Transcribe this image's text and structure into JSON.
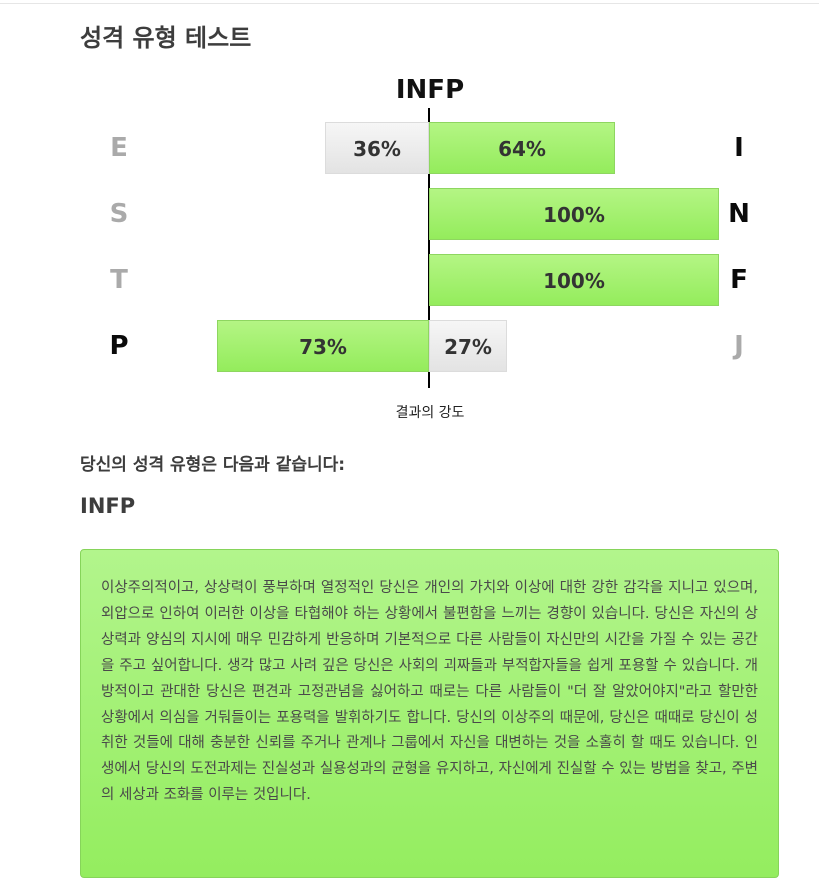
{
  "page": {
    "title": "성격 유형 테스트",
    "result_intro": "당신의 성격 유형은 다음과 같습니다:",
    "result_type": "INFP",
    "description": "이상주의적이고, 상상력이 풍부하며 열정적인 당신은 개인의 가치와 이상에 대한 강한 감각을 지니고 있으며, 외압으로 인하여 이러한 이상을 타협해야 하는 상황에서 불편함을 느끼는 경향이 있습니다. 당신은 자신의 상상력과 양심의 지시에 매우 민감하게 반응하며 기본적으로 다른 사람들이 자신만의 시간을 가질 수 있는 공간을 주고 싶어합니다. 생각 많고 사려 깊은 당신은 사회의 괴짜들과 부적합자들을 쉽게 포용할 수 있습니다. 개방적이고 관대한 당신은 편견과 고정관념을 싫어하고 때로는 다른 사람들이 \"더 잘 알았어야지\"라고 할만한 상황에서 의심을 거둬들이는 포용력을 발휘하기도 합니다. 당신의 이상주의 때문에, 당신은 때때로 당신이 성취한 것들에 대해 충분한 신뢰를 주거나 관계나 그룹에서 자신을 대변하는 것을 소홀히 할 때도 있습니다. 인생에서 당신의 도전과제는 진실성과 실용성과의 균형을 유지하고, 자신에게 진실할 수 있는 방법을 찾고, 주변의 세상과 조화를 이루는 것입니다."
  },
  "colors": {
    "winning_bar": "#9cef66",
    "losing_bar": "#ebebeb",
    "active_letter": "#0a0a0a",
    "inactive_letter": "#aaaaaa"
  },
  "chart_data": {
    "type": "bar",
    "orientation": "horizontal-diverging",
    "title": "INFP",
    "xlabel": "결과의 강도",
    "xlim": [
      0,
      100
    ],
    "rows": [
      {
        "left": "E",
        "right": "I",
        "left_value": 36,
        "right_value": 64,
        "left_label": "36%",
        "right_label": "64%",
        "dominant": "right"
      },
      {
        "left": "S",
        "right": "N",
        "left_value": 0,
        "right_value": 100,
        "left_label": "",
        "right_label": "100%",
        "dominant": "right"
      },
      {
        "left": "T",
        "right": "F",
        "left_value": 0,
        "right_value": 100,
        "left_label": "",
        "right_label": "100%",
        "dominant": "right"
      },
      {
        "left": "P",
        "right": "J",
        "left_value": 73,
        "right_value": 27,
        "left_label": "73%",
        "right_label": "27%",
        "dominant": "left"
      }
    ]
  }
}
